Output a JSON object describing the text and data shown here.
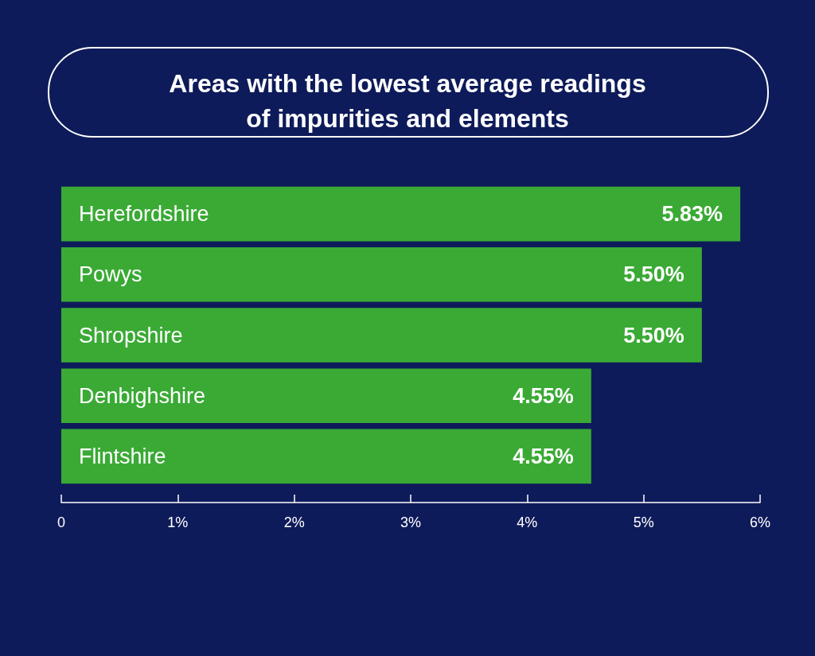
{
  "chart_data": {
    "type": "bar",
    "orientation": "horizontal",
    "title": "Areas with the lowest average readings\nof impurities and elements",
    "categories": [
      "Herefordshire",
      "Powys",
      "Shropshire",
      "Denbighshire",
      "Flintshire"
    ],
    "values": [
      5.83,
      5.5,
      5.5,
      4.55,
      4.55
    ],
    "value_labels": [
      "5.83%",
      "5.50%",
      "5.50%",
      "4.55%",
      "4.55%"
    ],
    "color": "#3aaa35",
    "xlim": [
      0,
      6
    ],
    "xticks": [
      0,
      {
        "value": 1,
        "label": "1%"
      },
      {
        "value": 2,
        "label": "2%"
      },
      {
        "value": 3,
        "label": "3%"
      },
      {
        "value": 4,
        "label": "4%"
      },
      {
        "value": 5,
        "label": "5%"
      },
      {
        "value": 6,
        "label": "6%"
      }
    ],
    "grid": false
  }
}
